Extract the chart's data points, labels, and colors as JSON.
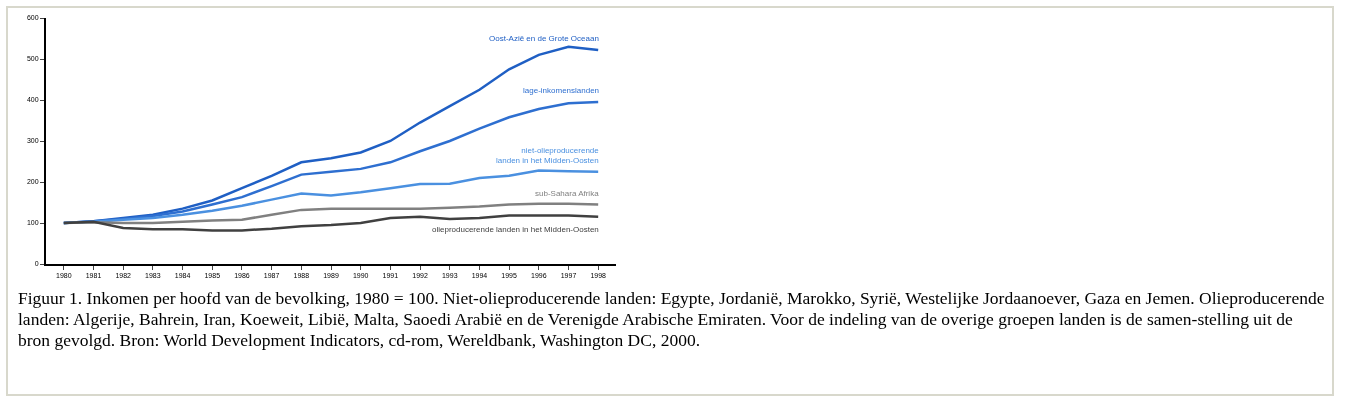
{
  "chart_data": {
    "type": "line",
    "categories": [
      "1980",
      "1981",
      "1982",
      "1983",
      "1984",
      "1985",
      "1986",
      "1987",
      "1988",
      "1989",
      "1990",
      "1991",
      "1992",
      "1993",
      "1994",
      "1995",
      "1996",
      "1997",
      "1998"
    ],
    "series": [
      {
        "name": "Oost-Azië en de Grote Oceaan",
        "color": "#1f5fc4",
        "values": [
          100,
          104,
          112,
          120,
          135,
          155,
          185,
          215,
          248,
          258,
          272,
          300,
          345,
          385,
          425,
          475,
          510,
          530,
          522
        ]
      },
      {
        "name": "lage-inkomenslanden",
        "color": "#2e6fd0",
        "values": [
          100,
          104,
          110,
          117,
          128,
          145,
          163,
          190,
          218,
          225,
          232,
          248,
          275,
          300,
          330,
          358,
          378,
          392,
          395
        ]
      },
      {
        "name": "niet-olieproducerende\nlanden in het Midden-Oosten",
        "color": "#4a90e0",
        "values": [
          100,
          103,
          108,
          112,
          120,
          130,
          142,
          157,
          172,
          167,
          175,
          185,
          195,
          196,
          210,
          215,
          228,
          226,
          225
        ]
      },
      {
        "name": "sub-Sahara Afrika",
        "color": "#808080",
        "values": [
          100,
          102,
          100,
          100,
          103,
          106,
          108,
          120,
          132,
          135,
          135,
          135,
          135,
          137,
          140,
          145,
          147,
          147,
          145
        ]
      },
      {
        "name": "olieproducerende landen in het Midden-Oosten",
        "color": "#404040",
        "values": [
          100,
          103,
          88,
          85,
          85,
          82,
          82,
          86,
          92,
          95,
          100,
          112,
          115,
          110,
          112,
          118,
          118,
          118,
          115
        ]
      }
    ],
    "ylim": [
      0,
      600
    ],
    "yticks": [
      0,
      100,
      200,
      300,
      400,
      500,
      600
    ],
    "grid": false,
    "legend": false,
    "marker": "none",
    "line_style": "solid",
    "annotations": [
      "Figuur 1. Inkomen per hoofd van de bevolking, 1980 = 100. Niet-olieproducerende landen: Egypte, Jordanië, Marokko, Syrië, Westelijke Jordaanoever, Gaza en Jemen. Olieproducerende landen: Algerije, Bahrein, Iran, Koeweit, Libië, Malta, Saoedi Arabië en de Verenigde Arabische Emiraten. Voor de indeling van de overige groepen landen is de samen-stelling uit de bron gevolgd. Bron: World Development Indicators, cd-rom, Wereldbank, Washington DC, 2000."
    ]
  }
}
